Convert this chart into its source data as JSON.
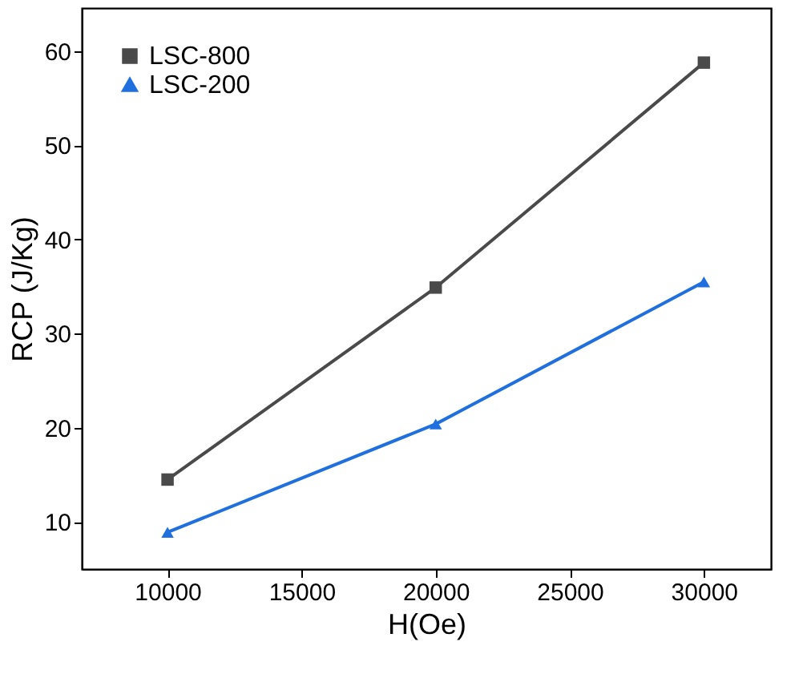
{
  "chart_data": {
    "type": "line",
    "xlabel": "H(Oe)",
    "ylabel": "RCP (J/Kg)",
    "x": [
      10000,
      20000,
      30000
    ],
    "series": [
      {
        "name": "LSC-800",
        "color": "#4a4a4a",
        "marker": "square",
        "values": [
          14.5,
          34.9,
          58.8
        ]
      },
      {
        "name": "LSC-200",
        "color": "#1f6fde",
        "marker": "triangle",
        "values": [
          8.9,
          20.4,
          35.5
        ]
      }
    ],
    "xlim": [
      6800,
      32500
    ],
    "xticks": [
      10000,
      15000,
      20000,
      25000,
      30000
    ],
    "ylim": [
      5,
      64.6
    ],
    "yticks": [
      10,
      20,
      30,
      40,
      50,
      60
    ],
    "grid": false,
    "legend": "top left",
    "line_style": "solid"
  }
}
